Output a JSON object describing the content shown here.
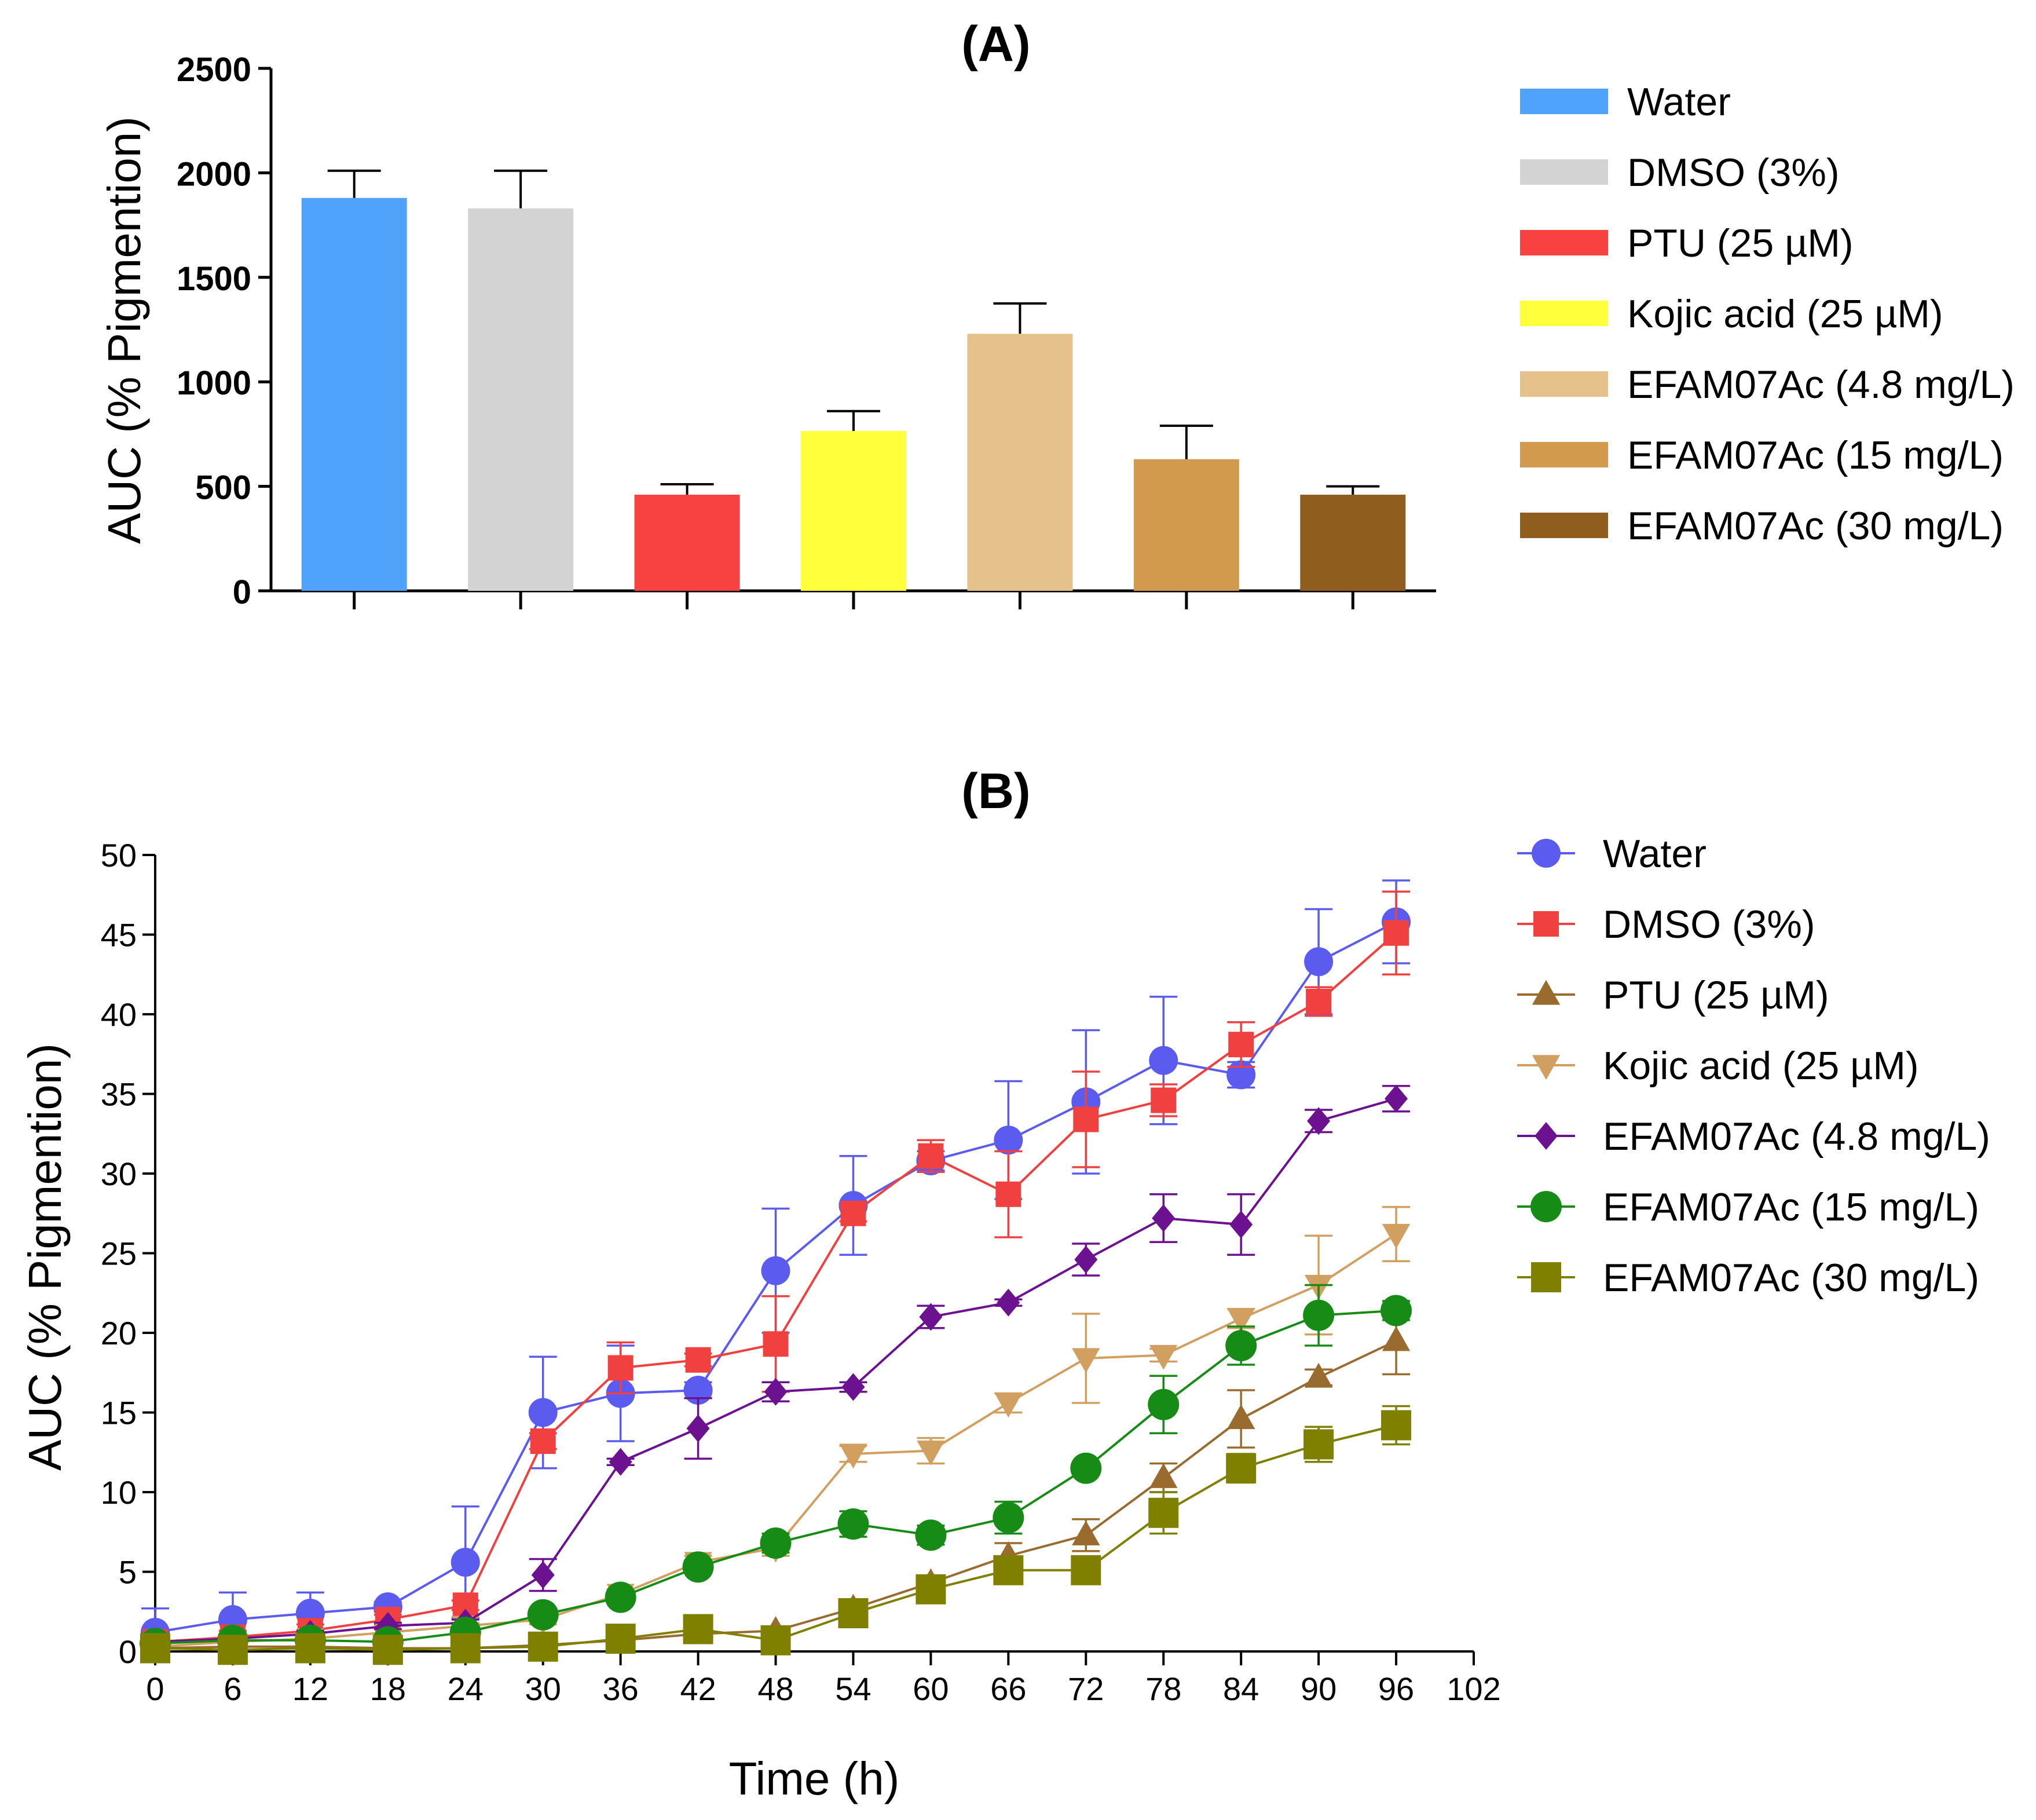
{
  "chart_data": [
    {
      "type": "bar",
      "title": "(A)",
      "xlabel": "",
      "ylabel": "AUC (% Pigmention)",
      "ylim": [
        0,
        2500
      ],
      "yticks": [
        0,
        500,
        1000,
        1500,
        2000,
        2500
      ],
      "grid": false,
      "legend_position": "right",
      "categories": [
        "Water",
        "DMSO (3%)",
        "PTU (25 µM)",
        "Kojic acid (25 µM)",
        "EFAM07Ac (4.8 mg/L)",
        "EFAM07Ac (15 mg/L)",
        "EFAM07Ac (30 mg/L)"
      ],
      "values": [
        1880,
        1830,
        460,
        765,
        1230,
        630,
        460
      ],
      "errors": [
        130,
        180,
        50,
        95,
        145,
        160,
        40
      ],
      "colors": [
        "#4fa3fb",
        "#d3d3d3",
        "#f84141",
        "#ffff3c",
        "#e5c28c",
        "#d19a4c",
        "#8f5e1f"
      ]
    },
    {
      "type": "line",
      "title": "(B)",
      "xlabel": "Time (h)",
      "ylabel": "AUC (% Pigmention)",
      "xlim": [
        0,
        102
      ],
      "ylim": [
        0,
        50
      ],
      "xticks": [
        0,
        6,
        12,
        18,
        24,
        30,
        36,
        42,
        48,
        54,
        60,
        66,
        72,
        78,
        84,
        90,
        96,
        102
      ],
      "yticks": [
        0,
        5,
        10,
        15,
        20,
        25,
        30,
        35,
        40,
        45,
        50
      ],
      "grid": false,
      "legend_position": "right",
      "x": [
        0,
        6,
        12,
        18,
        24,
        30,
        36,
        42,
        48,
        54,
        60,
        66,
        72,
        78,
        84,
        90,
        96
      ],
      "series": [
        {
          "name": "Water",
          "color": "#5b5bf0",
          "marker": "circle",
          "values": [
            1.2,
            2.0,
            2.4,
            2.8,
            5.6,
            15.0,
            16.2,
            16.4,
            23.9,
            28.0,
            30.8,
            32.1,
            34.5,
            37.1,
            36.2,
            43.3,
            45.8
          ],
          "errors": [
            1.5,
            1.7,
            1.3,
            0.3,
            3.5,
            3.5,
            3.0,
            0.5,
            3.9,
            3.1,
            0.6,
            3.7,
            4.5,
            4.0,
            0.8,
            3.3,
            2.6
          ]
        },
        {
          "name": "DMSO (3%)",
          "color": "#f04040",
          "marker": "square",
          "values": [
            0.6,
            0.9,
            1.3,
            2.0,
            2.9,
            13.2,
            17.8,
            18.3,
            19.3,
            27.5,
            31.1,
            28.7,
            33.4,
            34.6,
            38.1,
            40.8,
            45.1
          ],
          "errors": [
            0.3,
            0.4,
            0.4,
            0.3,
            0.3,
            0.5,
            1.6,
            0.4,
            3.0,
            0.5,
            1.0,
            2.7,
            3.0,
            1.0,
            1.4,
            0.9,
            2.6
          ]
        },
        {
          "name": "PTU (25 µM)",
          "color": "#9a6b2e",
          "marker": "triangle-up",
          "values": [
            0.2,
            0.3,
            0.3,
            0.2,
            0.2,
            0.4,
            0.7,
            1.1,
            1.3,
            2.7,
            4.3,
            6.0,
            7.3,
            10.9,
            14.6,
            17.2,
            19.5
          ],
          "errors": [
            0.1,
            0.1,
            0.1,
            0.1,
            0.1,
            0.1,
            0.1,
            0.2,
            0.2,
            0.3,
            0.4,
            0.8,
            1.0,
            0.9,
            1.8,
            0.5,
            2.1
          ]
        },
        {
          "name": "Kojic acid (25 µM)",
          "color": "#d1a060",
          "marker": "triangle-down",
          "values": [
            0.3,
            0.6,
            0.8,
            1.2,
            1.6,
            2.0,
            3.6,
            5.6,
            6.5,
            12.4,
            12.6,
            15.6,
            18.4,
            18.6,
            20.9,
            23.0,
            26.2
          ],
          "errors": [
            0.1,
            0.2,
            0.2,
            0.2,
            0.2,
            0.3,
            0.3,
            0.4,
            0.5,
            0.5,
            0.8,
            0.6,
            2.8,
            0.4,
            0.6,
            3.1,
            1.7
          ]
        },
        {
          "name": "EFAM07Ac (4.8 mg/L)",
          "color": "#6c1290",
          "marker": "diamond",
          "values": [
            0.6,
            0.8,
            1.1,
            1.6,
            1.8,
            4.8,
            11.9,
            14.0,
            16.3,
            16.6,
            21.0,
            21.9,
            24.6,
            27.2,
            26.8,
            33.3,
            34.7
          ],
          "errors": [
            0.2,
            0.2,
            0.2,
            0.2,
            0.2,
            1.0,
            0.2,
            1.9,
            0.6,
            0.3,
            0.7,
            0.2,
            1.0,
            1.5,
            1.9,
            0.7,
            0.8
          ]
        },
        {
          "name": "EFAM07Ac (15 mg/L)",
          "color": "#168c16",
          "marker": "circle",
          "values": [
            0.5,
            0.7,
            0.7,
            0.6,
            1.2,
            2.3,
            3.4,
            5.3,
            6.8,
            8.0,
            7.3,
            8.4,
            11.5,
            15.5,
            19.2,
            21.1,
            21.4
          ],
          "errors": [
            0.2,
            0.2,
            0.2,
            0.2,
            0.2,
            0.3,
            0.3,
            0.4,
            0.6,
            0.8,
            0.6,
            1.0,
            0.3,
            1.8,
            1.2,
            1.9,
            0.6
          ]
        },
        {
          "name": "EFAM07Ac (30 mg/L)",
          "color": "#808000",
          "marker": "square",
          "values": [
            0.2,
            0.1,
            0.2,
            0.1,
            0.2,
            0.3,
            0.8,
            1.4,
            0.7,
            2.4,
            3.9,
            5.1,
            5.1,
            8.7,
            11.5,
            13.0,
            14.2
          ],
          "errors": [
            0.1,
            0.1,
            0.1,
            0.1,
            0.1,
            0.1,
            0.2,
            0.3,
            0.2,
            0.4,
            0.6,
            0.5,
            0.4,
            1.3,
            0.9,
            1.1,
            1.2
          ]
        }
      ]
    }
  ]
}
